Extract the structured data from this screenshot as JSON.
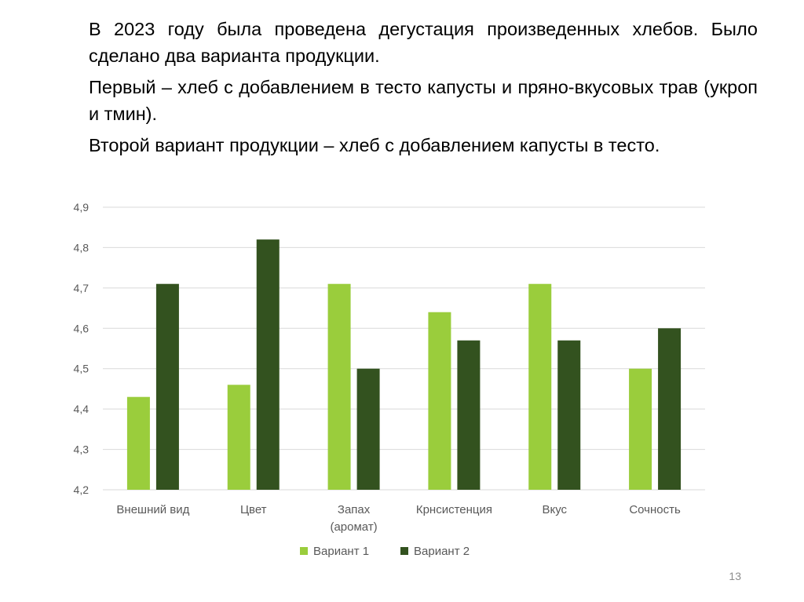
{
  "slide": {
    "paragraphs": [
      "В 2023 году была проведена дегустация произведенных хлебов. Было сделано два варианта продукции.",
      "Первый – хлеб с добавлением в тесто капусты и пряно-вкусовых трав (укроп и тмин).",
      "Второй вариант продукции – хлеб с добавлением капусты в тесто."
    ],
    "page_number": "13"
  },
  "chart_data": {
    "type": "bar",
    "categories": [
      "Внешний вид",
      "Цвет",
      "Запах (аромат)",
      "Крнсистенция",
      "Вкус",
      "Сочность"
    ],
    "category_lines": [
      [
        "Внешний вид"
      ],
      [
        "Цвет"
      ],
      [
        "Запах",
        "(аромат)"
      ],
      [
        "Крнсистенция"
      ],
      [
        "Вкус"
      ],
      [
        "Сочность"
      ]
    ],
    "series": [
      {
        "name": "Вариант 1",
        "color": "#9acd3c",
        "values": [
          4.43,
          4.46,
          4.71,
          4.64,
          4.71,
          4.5
        ]
      },
      {
        "name": "Вариант 2",
        "color": "#33521f",
        "values": [
          4.71,
          4.82,
          4.5,
          4.57,
          4.57,
          4.6
        ]
      }
    ],
    "ylim": [
      4.2,
      4.9
    ],
    "yticks": [
      "4,2",
      "4,3",
      "4,4",
      "4,5",
      "4,6",
      "4,7",
      "4,8",
      "4,9"
    ],
    "grid": true,
    "gridline_color": "#d9d9d9",
    "legend_position": "bottom",
    "title": "",
    "xlabel": "",
    "ylabel": ""
  }
}
